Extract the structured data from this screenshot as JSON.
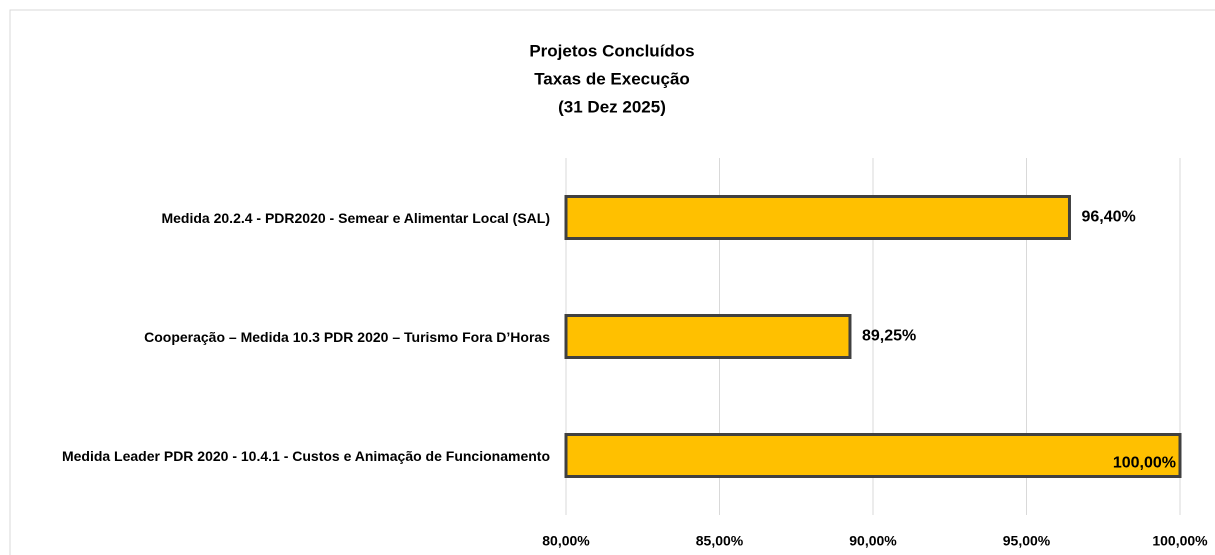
{
  "chart_data": {
    "type": "bar",
    "orientation": "horizontal",
    "title": [
      "Projetos Concluídos",
      "Taxas de Execução",
      "(31 Dez 2025)"
    ],
    "categories": [
      "Medida 20.2.4 - PDR2020 - Semear e Alimentar Local (SAL)",
      "Cooperação – Medida 10.3 PDR 2020 – Turismo Fora D’Horas",
      "Medida Leader PDR 2020 - 10.4.1 - Custos e Animação de Funcionamento"
    ],
    "values": [
      96.4,
      89.25,
      100
    ],
    "value_labels": [
      "96,40%",
      "89,25%",
      "100,00%"
    ],
    "color": "#ffc000",
    "xlim": [
      80,
      100
    ],
    "xticks": [
      {
        "value": 80,
        "label": "80,00%"
      },
      {
        "value": 85,
        "label": "85,00%"
      },
      {
        "value": 90,
        "label": "90,00%"
      },
      {
        "value": 95,
        "label": "95,00%"
      },
      {
        "value": 100,
        "label": "100,00%"
      }
    ],
    "grid": true
  }
}
